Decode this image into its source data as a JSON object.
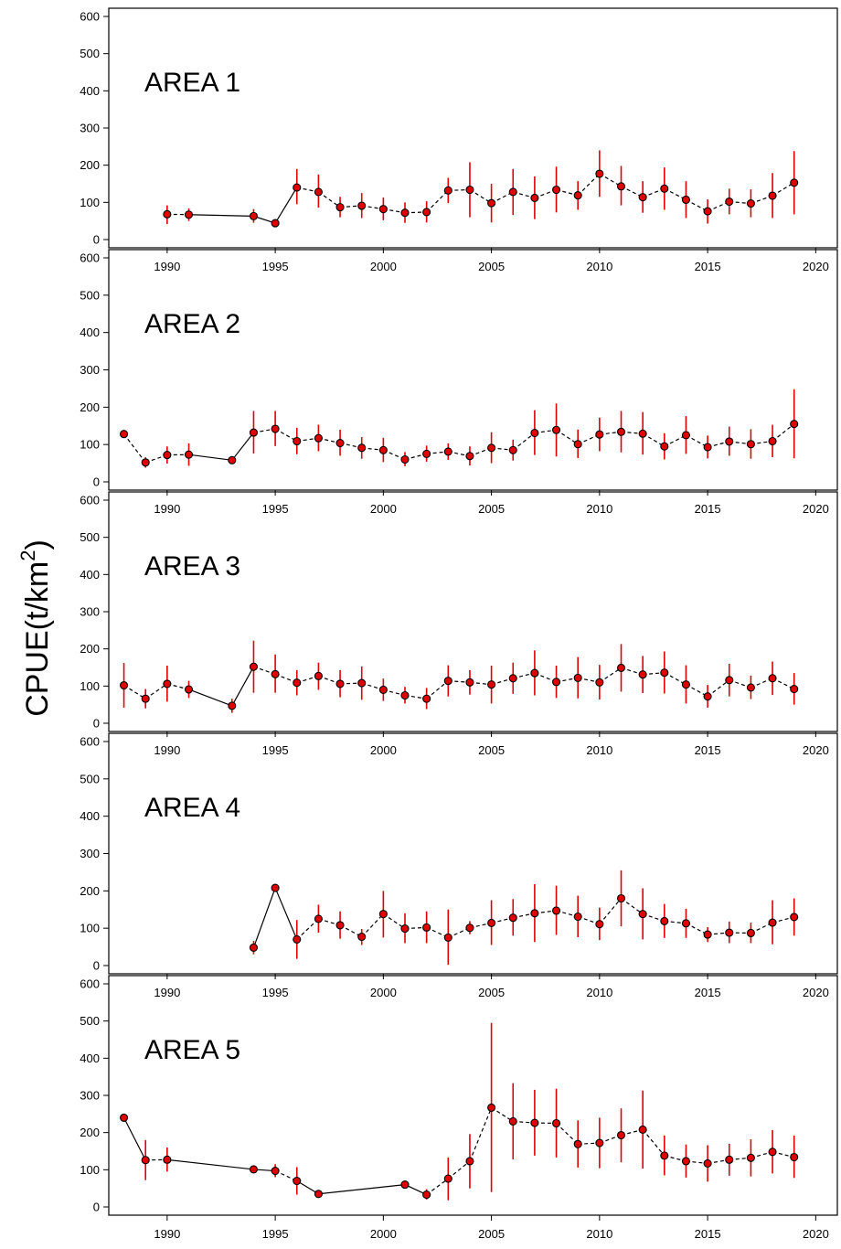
{
  "chart_data": {
    "type": "line",
    "description_axis": {
      "ylabel": "CPUE(t/km",
      "ylabel_superscript": "2",
      "ylabel_close": ")",
      "ylim": [
        0,
        600
      ],
      "yticks": [
        0,
        100,
        200,
        300,
        400,
        500,
        600
      ],
      "xlim": [
        1987.3,
        2021
      ],
      "xticks": [
        1990,
        1995,
        2000,
        2005,
        2010,
        2015,
        2020
      ]
    },
    "colors": {
      "marker_fill": "#e00000",
      "error_bar": "#e00000",
      "line": "#000000"
    },
    "panels": [
      {
        "title": "AREA 1",
        "points": [
          {
            "year": 1990,
            "mean": 68,
            "low": 42,
            "high": 92
          },
          {
            "year": 1991,
            "mean": 67,
            "low": 50,
            "high": 84
          },
          {
            "year": 1994,
            "mean": 63,
            "low": 45,
            "high": 82
          },
          {
            "year": 1995,
            "mean": 44,
            "low": 42,
            "high": 46
          },
          {
            "year": 1996,
            "mean": 140,
            "low": 95,
            "high": 190
          },
          {
            "year": 1997,
            "mean": 128,
            "low": 86,
            "high": 175
          },
          {
            "year": 1998,
            "mean": 87,
            "low": 60,
            "high": 115
          },
          {
            "year": 1999,
            "mean": 91,
            "low": 58,
            "high": 125
          },
          {
            "year": 2000,
            "mean": 82,
            "low": 52,
            "high": 113
          },
          {
            "year": 2001,
            "mean": 72,
            "low": 45,
            "high": 100
          },
          {
            "year": 2002,
            "mean": 74,
            "low": 46,
            "high": 103
          },
          {
            "year": 2003,
            "mean": 132,
            "low": 98,
            "high": 166
          },
          {
            "year": 2004,
            "mean": 134,
            "low": 60,
            "high": 208
          },
          {
            "year": 2005,
            "mean": 98,
            "low": 46,
            "high": 150
          },
          {
            "year": 2006,
            "mean": 128,
            "low": 66,
            "high": 190
          },
          {
            "year": 2007,
            "mean": 112,
            "low": 55,
            "high": 170
          },
          {
            "year": 2008,
            "mean": 134,
            "low": 73,
            "high": 196
          },
          {
            "year": 2009,
            "mean": 119,
            "low": 80,
            "high": 157
          },
          {
            "year": 2010,
            "mean": 177,
            "low": 115,
            "high": 240
          },
          {
            "year": 2011,
            "mean": 143,
            "low": 92,
            "high": 198
          },
          {
            "year": 2012,
            "mean": 114,
            "low": 72,
            "high": 157
          },
          {
            "year": 2013,
            "mean": 137,
            "low": 80,
            "high": 194
          },
          {
            "year": 2014,
            "mean": 107,
            "low": 58,
            "high": 157
          },
          {
            "year": 2015,
            "mean": 76,
            "low": 43,
            "high": 108
          },
          {
            "year": 2016,
            "mean": 102,
            "low": 68,
            "high": 137
          },
          {
            "year": 2017,
            "mean": 97,
            "low": 60,
            "high": 135
          },
          {
            "year": 2018,
            "mean": 118,
            "low": 58,
            "high": 179
          },
          {
            "year": 2019,
            "mean": 153,
            "low": 68,
            "high": 238
          }
        ],
        "solid_segments": [
          [
            1991,
            1994
          ],
          [
            1994,
            1995
          ],
          [
            1995,
            1996
          ]
        ]
      },
      {
        "title": "AREA 2",
        "points": [
          {
            "year": 1988,
            "mean": 128,
            "low": 128,
            "high": 128
          },
          {
            "year": 1989,
            "mean": 52,
            "low": 38,
            "high": 66
          },
          {
            "year": 1990,
            "mean": 72,
            "low": 49,
            "high": 95
          },
          {
            "year": 1991,
            "mean": 73,
            "low": 43,
            "high": 103
          },
          {
            "year": 1993,
            "mean": 58,
            "low": 56,
            "high": 60
          },
          {
            "year": 1994,
            "mean": 132,
            "low": 76,
            "high": 190
          },
          {
            "year": 1995,
            "mean": 142,
            "low": 96,
            "high": 190
          },
          {
            "year": 1996,
            "mean": 109,
            "low": 74,
            "high": 145
          },
          {
            "year": 1997,
            "mean": 117,
            "low": 82,
            "high": 153
          },
          {
            "year": 1998,
            "mean": 104,
            "low": 70,
            "high": 140
          },
          {
            "year": 1999,
            "mean": 91,
            "low": 62,
            "high": 120
          },
          {
            "year": 2000,
            "mean": 85,
            "low": 53,
            "high": 118
          },
          {
            "year": 2001,
            "mean": 60,
            "low": 42,
            "high": 80
          },
          {
            "year": 2002,
            "mean": 75,
            "low": 54,
            "high": 97
          },
          {
            "year": 2003,
            "mean": 81,
            "low": 59,
            "high": 103
          },
          {
            "year": 2004,
            "mean": 69,
            "low": 44,
            "high": 95
          },
          {
            "year": 2005,
            "mean": 91,
            "low": 50,
            "high": 133
          },
          {
            "year": 2006,
            "mean": 85,
            "low": 57,
            "high": 113
          },
          {
            "year": 2007,
            "mean": 131,
            "low": 72,
            "high": 192
          },
          {
            "year": 2008,
            "mean": 139,
            "low": 68,
            "high": 210
          },
          {
            "year": 2009,
            "mean": 101,
            "low": 64,
            "high": 140
          },
          {
            "year": 2010,
            "mean": 127,
            "low": 82,
            "high": 172
          },
          {
            "year": 2011,
            "mean": 134,
            "low": 79,
            "high": 190
          },
          {
            "year": 2012,
            "mean": 129,
            "low": 73,
            "high": 187
          },
          {
            "year": 2013,
            "mean": 95,
            "low": 60,
            "high": 130
          },
          {
            "year": 2014,
            "mean": 125,
            "low": 75,
            "high": 176
          },
          {
            "year": 2015,
            "mean": 93,
            "low": 63,
            "high": 124
          },
          {
            "year": 2016,
            "mean": 108,
            "low": 70,
            "high": 148
          },
          {
            "year": 2017,
            "mean": 101,
            "low": 62,
            "high": 141
          },
          {
            "year": 2018,
            "mean": 109,
            "low": 66,
            "high": 153
          },
          {
            "year": 2019,
            "mean": 155,
            "low": 63,
            "high": 248
          }
        ],
        "solid_segments": [
          [
            1991,
            1993
          ],
          [
            1993,
            1994
          ]
        ]
      },
      {
        "title": "AREA 3",
        "points": [
          {
            "year": 1988,
            "mean": 102,
            "low": 42,
            "high": 162
          },
          {
            "year": 1989,
            "mean": 66,
            "low": 40,
            "high": 92
          },
          {
            "year": 1990,
            "mean": 106,
            "low": 58,
            "high": 155
          },
          {
            "year": 1991,
            "mean": 91,
            "low": 68,
            "high": 114
          },
          {
            "year": 1993,
            "mean": 47,
            "low": 28,
            "high": 66
          },
          {
            "year": 1994,
            "mean": 152,
            "low": 82,
            "high": 222
          },
          {
            "year": 1995,
            "mean": 132,
            "low": 82,
            "high": 185
          },
          {
            "year": 1996,
            "mean": 109,
            "low": 75,
            "high": 143
          },
          {
            "year": 1997,
            "mean": 127,
            "low": 90,
            "high": 163
          },
          {
            "year": 1998,
            "mean": 106,
            "low": 70,
            "high": 143
          },
          {
            "year": 1999,
            "mean": 108,
            "low": 63,
            "high": 153
          },
          {
            "year": 2000,
            "mean": 90,
            "low": 60,
            "high": 120
          },
          {
            "year": 2001,
            "mean": 75,
            "low": 53,
            "high": 98
          },
          {
            "year": 2002,
            "mean": 66,
            "low": 38,
            "high": 95
          },
          {
            "year": 2003,
            "mean": 114,
            "low": 72,
            "high": 156
          },
          {
            "year": 2004,
            "mean": 110,
            "low": 77,
            "high": 143
          },
          {
            "year": 2005,
            "mean": 104,
            "low": 53,
            "high": 155
          },
          {
            "year": 2006,
            "mean": 121,
            "low": 79,
            "high": 163
          },
          {
            "year": 2007,
            "mean": 135,
            "low": 75,
            "high": 196
          },
          {
            "year": 2008,
            "mean": 111,
            "low": 68,
            "high": 155
          },
          {
            "year": 2009,
            "mean": 122,
            "low": 67,
            "high": 178
          },
          {
            "year": 2010,
            "mean": 110,
            "low": 64,
            "high": 157
          },
          {
            "year": 2011,
            "mean": 149,
            "low": 85,
            "high": 213
          },
          {
            "year": 2012,
            "mean": 131,
            "low": 81,
            "high": 181
          },
          {
            "year": 2013,
            "mean": 136,
            "low": 80,
            "high": 193
          },
          {
            "year": 2014,
            "mean": 104,
            "low": 53,
            "high": 156
          },
          {
            "year": 2015,
            "mean": 72,
            "low": 42,
            "high": 103
          },
          {
            "year": 2016,
            "mean": 116,
            "low": 72,
            "high": 160
          },
          {
            "year": 2017,
            "mean": 96,
            "low": 65,
            "high": 128
          },
          {
            "year": 2018,
            "mean": 121,
            "low": 76,
            "high": 166
          },
          {
            "year": 2019,
            "mean": 92,
            "low": 50,
            "high": 135
          }
        ],
        "solid_segments": [
          [
            1991,
            1993
          ],
          [
            1993,
            1994
          ]
        ]
      },
      {
        "title": "AREA 4",
        "points": [
          {
            "year": 1994,
            "mean": 48,
            "low": 30,
            "high": 66
          },
          {
            "year": 1995,
            "mean": 208,
            "low": 208,
            "high": 208
          },
          {
            "year": 1996,
            "mean": 70,
            "low": 18,
            "high": 122
          },
          {
            "year": 1997,
            "mean": 125,
            "low": 88,
            "high": 163
          },
          {
            "year": 1998,
            "mean": 108,
            "low": 72,
            "high": 145
          },
          {
            "year": 1999,
            "mean": 77,
            "low": 55,
            "high": 98
          },
          {
            "year": 2000,
            "mean": 138,
            "low": 75,
            "high": 200
          },
          {
            "year": 2001,
            "mean": 99,
            "low": 60,
            "high": 140
          },
          {
            "year": 2002,
            "mean": 102,
            "low": 60,
            "high": 145
          },
          {
            "year": 2003,
            "mean": 75,
            "low": 2,
            "high": 150
          },
          {
            "year": 2004,
            "mean": 101,
            "low": 84,
            "high": 119
          },
          {
            "year": 2005,
            "mean": 114,
            "low": 55,
            "high": 175
          },
          {
            "year": 2006,
            "mean": 128,
            "low": 80,
            "high": 178
          },
          {
            "year": 2007,
            "mean": 140,
            "low": 63,
            "high": 218
          },
          {
            "year": 2008,
            "mean": 147,
            "low": 82,
            "high": 214
          },
          {
            "year": 2009,
            "mean": 131,
            "low": 76,
            "high": 187
          },
          {
            "year": 2010,
            "mean": 111,
            "low": 68,
            "high": 155
          },
          {
            "year": 2011,
            "mean": 180,
            "low": 105,
            "high": 255
          },
          {
            "year": 2012,
            "mean": 138,
            "low": 70,
            "high": 207
          },
          {
            "year": 2013,
            "mean": 119,
            "low": 74,
            "high": 165
          },
          {
            "year": 2014,
            "mean": 113,
            "low": 74,
            "high": 152
          },
          {
            "year": 2015,
            "mean": 83,
            "low": 63,
            "high": 103
          },
          {
            "year": 2016,
            "mean": 88,
            "low": 60,
            "high": 118
          },
          {
            "year": 2017,
            "mean": 87,
            "low": 60,
            "high": 115
          },
          {
            "year": 2018,
            "mean": 115,
            "low": 57,
            "high": 175
          },
          {
            "year": 2019,
            "mean": 130,
            "low": 80,
            "high": 180
          }
        ],
        "solid_segments": [
          [
            1994,
            1995
          ],
          [
            1995,
            1996
          ]
        ]
      },
      {
        "title": "AREA 5",
        "points": [
          {
            "year": 1988,
            "mean": 240,
            "low": 240,
            "high": 240
          },
          {
            "year": 1989,
            "mean": 126,
            "low": 72,
            "high": 180
          },
          {
            "year": 1990,
            "mean": 127,
            "low": 95,
            "high": 160
          },
          {
            "year": 1994,
            "mean": 101,
            "low": 101,
            "high": 101
          },
          {
            "year": 1995,
            "mean": 97,
            "low": 80,
            "high": 115
          },
          {
            "year": 1996,
            "mean": 70,
            "low": 33,
            "high": 107
          },
          {
            "year": 1997,
            "mean": 35,
            "low": 35,
            "high": 35
          },
          {
            "year": 2001,
            "mean": 60,
            "low": 60,
            "high": 60
          },
          {
            "year": 2002,
            "mean": 33,
            "low": 20,
            "high": 48
          },
          {
            "year": 2003,
            "mean": 76,
            "low": 18,
            "high": 133
          },
          {
            "year": 2004,
            "mean": 123,
            "low": 50,
            "high": 196
          },
          {
            "year": 2005,
            "mean": 267,
            "low": 40,
            "high": 495
          },
          {
            "year": 2006,
            "mean": 230,
            "low": 128,
            "high": 333
          },
          {
            "year": 2007,
            "mean": 226,
            "low": 138,
            "high": 315
          },
          {
            "year": 2008,
            "mean": 225,
            "low": 133,
            "high": 318
          },
          {
            "year": 2009,
            "mean": 169,
            "low": 106,
            "high": 233
          },
          {
            "year": 2010,
            "mean": 172,
            "low": 104,
            "high": 240
          },
          {
            "year": 2011,
            "mean": 193,
            "low": 120,
            "high": 265
          },
          {
            "year": 2012,
            "mean": 208,
            "low": 103,
            "high": 313
          },
          {
            "year": 2013,
            "mean": 138,
            "low": 85,
            "high": 192
          },
          {
            "year": 2014,
            "mean": 123,
            "low": 79,
            "high": 168
          },
          {
            "year": 2015,
            "mean": 117,
            "low": 68,
            "high": 166
          },
          {
            "year": 2016,
            "mean": 127,
            "low": 84,
            "high": 170
          },
          {
            "year": 2017,
            "mean": 132,
            "low": 82,
            "high": 182
          },
          {
            "year": 2018,
            "mean": 148,
            "low": 90,
            "high": 207
          },
          {
            "year": 2019,
            "mean": 134,
            "low": 78,
            "high": 192
          }
        ],
        "solid_segments": [
          [
            1988,
            1989
          ],
          [
            1990,
            1994
          ],
          [
            1994,
            1995
          ],
          [
            1996,
            1997
          ],
          [
            1997,
            2001
          ],
          [
            2001,
            2002
          ]
        ]
      }
    ]
  }
}
